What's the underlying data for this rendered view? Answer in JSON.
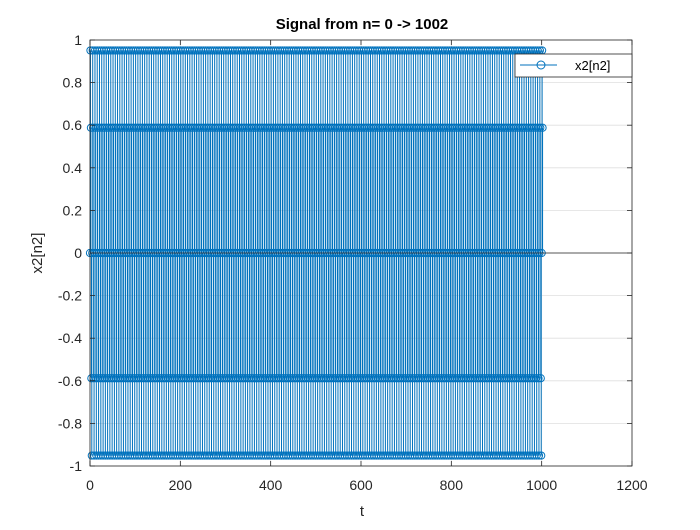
{
  "chart_data": {
    "type": "stem",
    "title": "Signal from n= 0 -> 1002",
    "xlabel": "t",
    "ylabel": "x2[n2]",
    "xlim": [
      0,
      1200
    ],
    "ylim": [
      -1,
      1
    ],
    "xticks": [
      "0",
      "200",
      "400",
      "600",
      "800",
      "1000",
      "1200"
    ],
    "yticks": [
      "-1",
      "-0.8",
      "-0.6",
      "-0.4",
      "-0.2",
      "0",
      "0.2",
      "0.4",
      "0.6",
      "0.8",
      "1"
    ],
    "grid": true,
    "legend": "top-right",
    "series": [
      {
        "name": "x2[n2]",
        "color": "#0072bd",
        "x_start": 0,
        "x_end": 1002,
        "levels": [
          0,
          0.951,
          0.588,
          -0.588,
          -0.951
        ]
      }
    ]
  }
}
